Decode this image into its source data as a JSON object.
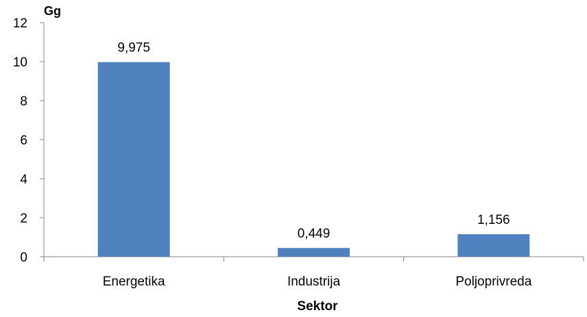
{
  "chart_data": {
    "type": "bar",
    "categories": [
      "Energetika",
      "Industrija",
      "Poljoprivreda"
    ],
    "values": [
      9.975,
      0.449,
      1.156
    ],
    "data_labels": [
      "9,975",
      "0,449",
      "1,156"
    ],
    "ylabel": "Gg",
    "xlabel": "Sektor",
    "ylim": [
      0,
      12
    ],
    "yticks": [
      0,
      2,
      4,
      6,
      8,
      10,
      12
    ],
    "grid": false,
    "legend": "none",
    "bar_color": "#4F81BD"
  }
}
